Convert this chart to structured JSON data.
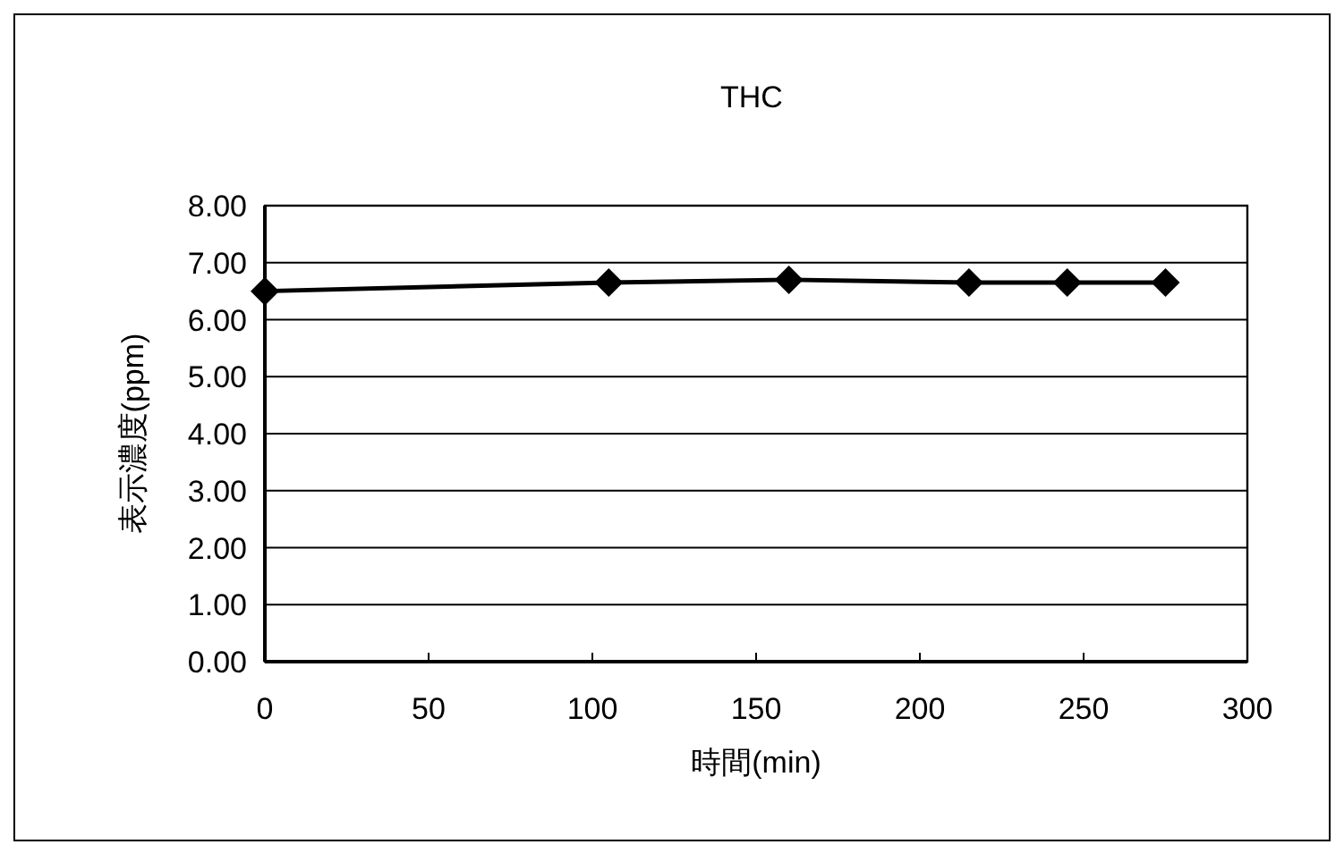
{
  "chart_data": {
    "type": "line",
    "title": "THC",
    "xlabel": "時間(min)",
    "ylabel": "表示濃度(ppm)",
    "x": [
      0,
      105,
      160,
      215,
      245,
      275
    ],
    "series": [
      {
        "color": "#000000",
        "values": [
          6.5,
          6.65,
          6.7,
          6.65,
          6.65,
          6.65
        ]
      }
    ],
    "xlim": [
      0,
      300
    ],
    "xticks": [
      0,
      50,
      100,
      150,
      200,
      250,
      300
    ],
    "ylim": [
      0,
      8
    ],
    "yticks": [
      {
        "value": 0,
        "label": "0.00"
      },
      {
        "value": 1,
        "label": "1.00"
      },
      {
        "value": 2,
        "label": "2.00"
      },
      {
        "value": 3,
        "label": "3.00"
      },
      {
        "value": 4,
        "label": "4.00"
      },
      {
        "value": 5,
        "label": "5.00"
      },
      {
        "value": 6,
        "label": "6.00"
      },
      {
        "value": 7,
        "label": "7.00"
      },
      {
        "value": 8,
        "label": "8.00"
      }
    ],
    "grid": "y",
    "marker": "diamond",
    "line_style": "solid"
  }
}
